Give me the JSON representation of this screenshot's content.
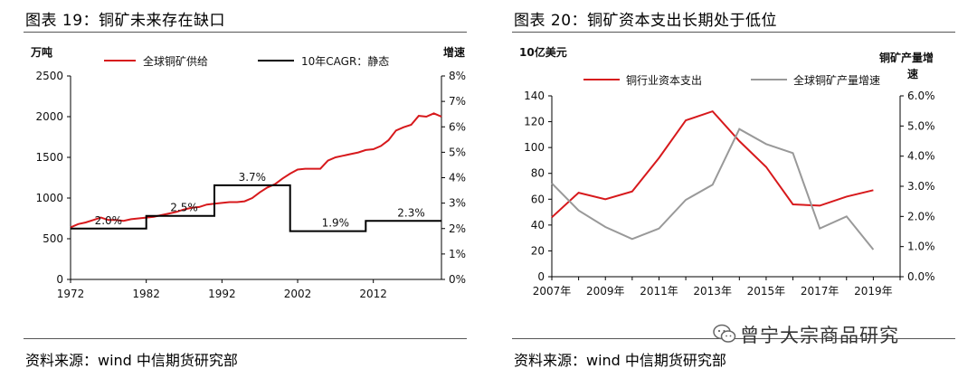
{
  "left": {
    "figure_title": "图表 19：铜矿未来存在缺口",
    "source": "资料来源：wind 中信期货研究部",
    "chart_data": {
      "type": "line",
      "title": "图表 19：铜矿未来存在缺口",
      "y_left_unit": "万吨",
      "y_right_unit": "增速",
      "x_ticks": [
        "1972",
        "1982",
        "1992",
        "2002",
        "2012"
      ],
      "y_left_ticks": [
        "0",
        "500",
        "1000",
        "1500",
        "2000",
        "2500"
      ],
      "y_right_ticks": [
        "0%",
        "1%",
        "2%",
        "3%",
        "4%",
        "5%",
        "6%",
        "7%",
        "8%"
      ],
      "y_left_range": [
        0,
        2500
      ],
      "y_right_range": [
        0,
        8
      ],
      "x_range": [
        1972,
        2021
      ],
      "legend_position": "top",
      "series": [
        {
          "name": "全球铜矿供给",
          "axis": "left",
          "color": "#d7191c",
          "x": [
            1972,
            1973,
            1974,
            1975,
            1976,
            1977,
            1978,
            1979,
            1980,
            1981,
            1982,
            1983,
            1984,
            1985,
            1986,
            1987,
            1988,
            1989,
            1990,
            1991,
            1992,
            1993,
            1994,
            1995,
            1996,
            1997,
            1998,
            1999,
            2000,
            2001,
            2002,
            2003,
            2004,
            2005,
            2006,
            2007,
            2008,
            2009,
            2010,
            2011,
            2012,
            2013,
            2014,
            2015,
            2016,
            2017,
            2018,
            2019,
            2020,
            2021
          ],
          "y": [
            640,
            680,
            700,
            730,
            760,
            730,
            730,
            720,
            740,
            750,
            760,
            770,
            790,
            810,
            830,
            860,
            880,
            890,
            920,
            930,
            940,
            950,
            950,
            960,
            1000,
            1070,
            1130,
            1170,
            1240,
            1300,
            1350,
            1360,
            1360,
            1360,
            1460,
            1500,
            1520,
            1540,
            1560,
            1590,
            1600,
            1640,
            1710,
            1830,
            1870,
            1900,
            2010,
            2000,
            2040,
            2000
          ],
          "labels_at_points": false
        },
        {
          "name": "10年CAGR：静态",
          "axis": "right",
          "color": "#000000",
          "steps": [
            {
              "from": 1972,
              "to": 1982,
              "value": 2.0
            },
            {
              "from": 1982,
              "to": 1991,
              "value": 2.5
            },
            {
              "from": 1991,
              "to": 2001,
              "value": 3.7
            },
            {
              "from": 2001,
              "to": 2011,
              "value": 1.9
            },
            {
              "from": 2011,
              "to": 2021,
              "value": 2.3
            }
          ]
        }
      ],
      "annotations": [
        {
          "text": "2.0%",
          "x": 1977,
          "y": 2.0
        },
        {
          "text": "2.5%",
          "x": 1987,
          "y": 2.5
        },
        {
          "text": "3.7%",
          "x": 1996,
          "y": 3.7
        },
        {
          "text": "1.9%",
          "x": 2007,
          "y": 1.9
        },
        {
          "text": "2.3%",
          "x": 2017,
          "y": 2.3
        }
      ]
    }
  },
  "right": {
    "figure_title": "图表 20：铜矿资本支出长期处于低位",
    "source": "资料来源：wind 中信期货研究部",
    "chart_data": {
      "type": "line",
      "title": "图表 20：铜矿资本支出长期处于低位",
      "y_left_unit": "10亿美元",
      "y_right_unit_line1": "铜矿产量增",
      "y_right_unit_line2": "速",
      "x_ticks": [
        "2007年",
        "2009年",
        "2011年",
        "2013年",
        "2015年",
        "2017年",
        "2019年"
      ],
      "y_left_ticks": [
        "0",
        "20",
        "40",
        "60",
        "80",
        "100",
        "120",
        "140"
      ],
      "y_right_ticks": [
        "0.0%",
        "1.0%",
        "2.0%",
        "3.0%",
        "4.0%",
        "5.0%",
        "6.0%"
      ],
      "y_left_range": [
        0,
        140
      ],
      "y_right_range": [
        0,
        6
      ],
      "x_range": [
        2007,
        2020
      ],
      "legend_position": "top",
      "series": [
        {
          "name": "铜行业资本支出",
          "axis": "left",
          "color": "#d7191c",
          "x": [
            2007,
            2008,
            2009,
            2010,
            2011,
            2012,
            2013,
            2014,
            2015,
            2016,
            2017,
            2018,
            2019,
            2020
          ],
          "y": [
            46,
            65,
            60,
            66,
            92,
            121,
            128,
            105,
            85,
            56,
            55,
            62,
            67,
            null
          ]
        },
        {
          "name": "全球铜矿产量增速",
          "axis": "right",
          "color": "#999999",
          "x": [
            2007,
            2008,
            2009,
            2010,
            2011,
            2012,
            2013,
            2014,
            2015,
            2016,
            2017,
            2018,
            2019
          ],
          "y": [
            3.1,
            2.2,
            1.65,
            1.25,
            1.6,
            2.55,
            3.05,
            4.9,
            4.4,
            4.1,
            1.6,
            2.0,
            0.9
          ]
        }
      ]
    }
  },
  "watermark": "曾宁大宗商品研究",
  "icons": {
    "watermark_icon": "wechat-icon"
  }
}
